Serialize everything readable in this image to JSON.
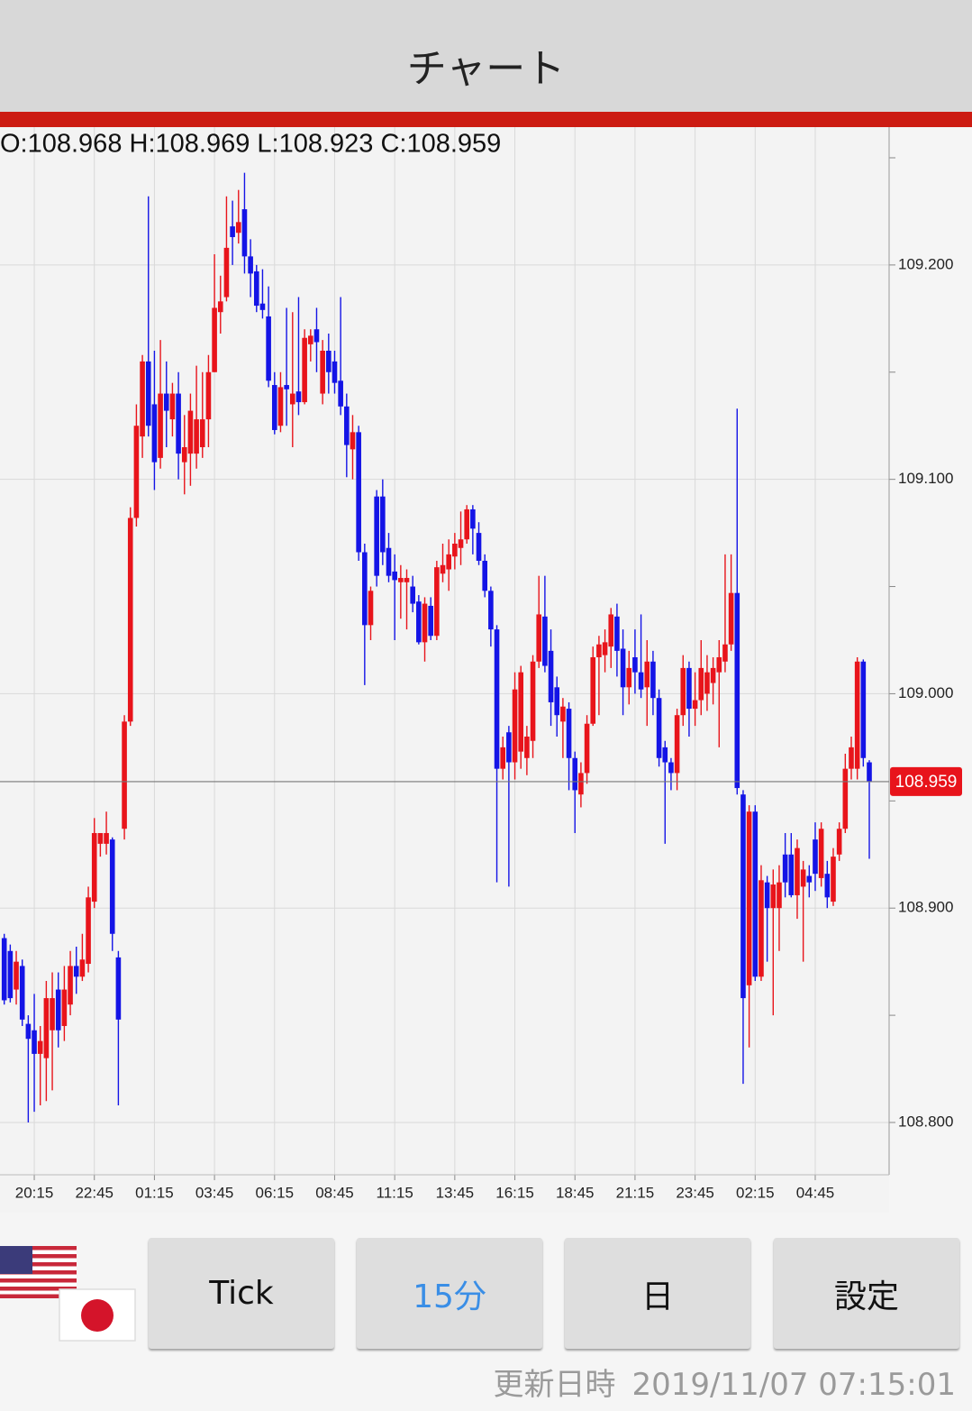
{
  "header": {
    "title": "チャート"
  },
  "chart_data": {
    "type": "candlestick",
    "ohlc_text": "O:108.968 H:108.969 L:108.923 C:108.959",
    "categories": [
      null,
      null,
      null,
      null,
      null,
      "20:15",
      null,
      null,
      null,
      null,
      null,
      null,
      null,
      null,
      null,
      "22:45",
      null,
      null,
      null,
      null,
      null,
      null,
      null,
      null,
      null,
      "01:15",
      null,
      null,
      null,
      null,
      null,
      null,
      null,
      null,
      null,
      "03:45",
      null,
      null,
      null,
      null,
      null,
      null,
      null,
      null,
      null,
      "06:15",
      null,
      null,
      null,
      null,
      null,
      null,
      null,
      null,
      null,
      "08:45",
      null,
      null,
      null,
      null,
      null,
      null,
      null,
      null,
      null,
      "11:15",
      null,
      null,
      null,
      null,
      null,
      null,
      null,
      null,
      null,
      "13:45",
      null,
      null,
      null,
      null,
      null,
      null,
      null,
      null,
      null,
      "16:15",
      null,
      null,
      null,
      null,
      null,
      null,
      null,
      null,
      null,
      "18:45",
      null,
      null,
      null,
      null,
      null,
      null,
      null,
      null,
      null,
      "21:15",
      null,
      null,
      null,
      null,
      null,
      null,
      null,
      null,
      null,
      "23:45",
      null,
      null,
      null,
      null,
      null,
      null,
      null,
      null,
      null,
      "02:15",
      null,
      null,
      null,
      null,
      null,
      null,
      null,
      null,
      null,
      "04:45",
      null,
      null,
      null,
      null,
      null,
      null,
      null,
      null,
      null
    ],
    "open": [
      108.886,
      108.88,
      108.862,
      108.873,
      108.846,
      108.843,
      108.832,
      108.83,
      108.843,
      108.862,
      108.845,
      108.855,
      108.873,
      108.868,
      108.874,
      108.903,
      108.93,
      108.93,
      108.932,
      108.877,
      108.937,
      108.987,
      109.082,
      109.12,
      109.155,
      109.135,
      109.11,
      109.14,
      109.128,
      109.14,
      109.108,
      109.112,
      109.112,
      109.115,
      109.128,
      109.15,
      109.178,
      109.185,
      109.218,
      109.215,
      109.226,
      109.204,
      109.197,
      109.182,
      109.176,
      109.144,
      109.125,
      109.144,
      109.135,
      109.141,
      109.136,
      109.163,
      109.17,
      109.14,
      109.16,
      109.155,
      109.146,
      109.134,
      109.114,
      109.122,
      109.066,
      109.032,
      109.092,
      109.092,
      109.068,
      109.057,
      109.052,
      109.052,
      109.05,
      109.043,
      109.024,
      109.041,
      109.027,
      109.056,
      109.058,
      109.064,
      109.068,
      109.072,
      109.086,
      109.075,
      109.062,
      109.048,
      109.03,
      108.965,
      108.982,
      108.968,
      108.973,
      108.97,
      108.978,
      109.015,
      109.036,
      109.02,
      109.003,
      108.987,
      108.993,
      108.97,
      108.953,
      108.963,
      108.986,
      109.017,
      109.018,
      109.022,
      109.036,
      109.021,
      109.003,
      109.017,
      109.01,
      109.003,
      109.015,
      108.998,
      108.975,
      108.968,
      108.963,
      108.99,
      109.012,
      108.993,
      108.997,
      109.0,
      109.005,
      109.01,
      109.015,
      109.023,
      109.047,
      108.953,
      108.864,
      108.945,
      108.868,
      108.912,
      108.9,
      108.9,
      108.925,
      108.925,
      108.906,
      108.91,
      108.915,
      108.932,
      108.914,
      108.916,
      108.903,
      108.925,
      108.937,
      108.965,
      108.965,
      109.015,
      108.968
    ],
    "high": [
      108.888,
      108.883,
      108.88,
      108.876,
      108.85,
      108.86,
      108.845,
      108.866,
      108.87,
      108.87,
      108.873,
      108.88,
      108.882,
      108.888,
      108.91,
      108.942,
      108.935,
      108.945,
      108.933,
      108.88,
      108.99,
      109.087,
      109.135,
      109.158,
      109.232,
      109.16,
      109.165,
      109.155,
      109.145,
      109.15,
      109.13,
      109.14,
      109.153,
      109.15,
      109.158,
      109.205,
      109.195,
      109.232,
      109.23,
      109.235,
      109.243,
      109.212,
      109.2,
      109.198,
      109.19,
      109.15,
      109.15,
      109.18,
      109.178,
      109.185,
      109.17,
      109.17,
      109.18,
      109.165,
      109.168,
      109.16,
      109.185,
      109.14,
      109.13,
      109.125,
      109.07,
      109.05,
      109.095,
      109.1,
      109.075,
      109.065,
      109.06,
      109.058,
      109.055,
      109.046,
      109.045,
      109.045,
      109.062,
      109.07,
      109.072,
      109.075,
      109.085,
      109.088,
      109.088,
      109.08,
      109.065,
      109.05,
      109.032,
      108.98,
      108.985,
      109.01,
      109.013,
      108.985,
      109.018,
      109.055,
      109.055,
      109.03,
      109.008,
      108.998,
      108.996,
      108.973,
      108.968,
      108.99,
      109.022,
      109.027,
      109.03,
      109.04,
      109.042,
      109.03,
      109.02,
      109.03,
      109.037,
      109.025,
      109.02,
      109.002,
      108.978,
      108.97,
      108.993,
      109.018,
      109.015,
      109.01,
      109.025,
      109.018,
      109.017,
      109.025,
      109.065,
      109.065,
      109.133,
      108.955,
      108.948,
      108.948,
      108.92,
      108.915,
      108.918,
      108.92,
      108.935,
      108.935,
      108.932,
      108.922,
      108.92,
      108.94,
      108.94,
      108.922,
      108.928,
      108.94,
      108.972,
      108.98,
      109.017,
      109.016,
      108.969
    ],
    "low": [
      108.855,
      108.856,
      108.855,
      108.845,
      108.8,
      108.805,
      108.808,
      108.81,
      108.815,
      108.835,
      108.838,
      108.85,
      108.86,
      108.866,
      108.87,
      108.9,
      108.924,
      108.925,
      108.88,
      108.808,
      108.932,
      108.985,
      109.078,
      109.11,
      109.12,
      109.095,
      109.105,
      109.115,
      109.12,
      109.1,
      109.093,
      109.097,
      109.105,
      109.11,
      109.115,
      109.15,
      109.168,
      109.183,
      109.2,
      109.21,
      109.196,
      109.185,
      109.178,
      109.175,
      109.143,
      109.121,
      109.122,
      109.125,
      109.115,
      109.13,
      109.135,
      109.155,
      109.15,
      109.135,
      109.14,
      109.14,
      109.13,
      109.101,
      109.1,
      109.062,
      109.004,
      109.025,
      109.05,
      109.06,
      109.052,
      109.025,
      109.035,
      109.03,
      109.038,
      109.023,
      109.015,
      109.025,
      109.025,
      109.052,
      109.048,
      109.058,
      109.06,
      109.07,
      109.065,
      109.06,
      109.045,
      109.022,
      108.912,
      108.96,
      108.91,
      108.96,
      108.965,
      108.962,
      108.97,
      109.012,
      109.01,
      108.985,
      108.98,
      108.97,
      108.955,
      108.935,
      108.947,
      108.958,
      108.985,
      108.99,
      109.01,
      109.012,
      109.008,
      108.99,
      108.995,
      109.0,
      108.998,
      108.985,
      108.99,
      108.966,
      108.93,
      108.955,
      108.955,
      108.985,
      108.98,
      108.985,
      108.99,
      108.992,
      108.995,
      108.975,
      109.01,
      109.02,
      108.953,
      108.818,
      108.835,
      108.866,
      108.866,
      108.875,
      108.85,
      108.88,
      108.905,
      108.905,
      108.895,
      108.875,
      108.905,
      108.908,
      108.91,
      108.9,
      108.901,
      108.922,
      108.935,
      108.96,
      108.96,
      108.966,
      108.923
    ],
    "close": [
      108.857,
      108.858,
      108.875,
      108.848,
      108.839,
      108.832,
      108.838,
      108.858,
      108.858,
      108.843,
      108.862,
      108.873,
      108.868,
      108.876,
      108.905,
      108.935,
      108.935,
      108.935,
      108.888,
      108.848,
      108.987,
      109.082,
      109.125,
      109.155,
      109.125,
      109.108,
      109.14,
      109.132,
      109.14,
      109.112,
      109.115,
      109.132,
      109.128,
      109.128,
      109.15,
      109.18,
      109.183,
      109.208,
      109.213,
      109.22,
      109.204,
      109.196,
      109.181,
      109.179,
      109.146,
      109.123,
      109.143,
      109.142,
      109.14,
      109.136,
      109.166,
      109.167,
      109.164,
      109.16,
      109.15,
      109.145,
      109.134,
      109.116,
      109.122,
      109.066,
      109.032,
      109.048,
      109.055,
      109.066,
      109.055,
      109.053,
      109.054,
      109.054,
      109.042,
      109.024,
      109.042,
      109.027,
      109.059,
      109.06,
      109.065,
      109.07,
      109.072,
      109.086,
      109.077,
      109.062,
      109.048,
      109.03,
      108.965,
      108.975,
      108.968,
      109.002,
      109.01,
      108.98,
      109.015,
      109.037,
      109.013,
      108.996,
      108.99,
      108.994,
      108.97,
      108.955,
      108.963,
      108.986,
      109.017,
      109.023,
      109.024,
      109.037,
      109.02,
      109.003,
      109.012,
      109.01,
      109.002,
      109.015,
      108.998,
      108.97,
      108.968,
      108.963,
      108.99,
      109.012,
      108.993,
      108.997,
      109.012,
      109.01,
      109.012,
      109.017,
      109.023,
      109.047,
      108.956,
      108.858,
      108.945,
      108.868,
      108.913,
      108.9,
      108.911,
      108.912,
      108.912,
      108.906,
      108.928,
      108.918,
      108.912,
      108.916,
      108.937,
      108.905,
      108.924,
      108.937,
      108.965,
      108.975,
      109.015,
      108.97,
      108.959
    ],
    "up_color": "#e8141b",
    "down_color": "#1414e6",
    "last_price": 108.959,
    "last_price_color": "#e8141b",
    "ylim": [
      108.7756,
      109.2643
    ],
    "yticks": [
      {
        "value": 108.8,
        "label": "108.800"
      },
      {
        "value": 108.9,
        "label": "108.900"
      },
      {
        "value": 109.0,
        "label": "109.000"
      },
      {
        "value": 109.1,
        "label": "109.100"
      },
      {
        "value": 109.2,
        "label": "109.200"
      }
    ],
    "minor_yticks": [
      108.85,
      108.95,
      109.05,
      109.15,
      109.25
    ],
    "grid": true
  },
  "buttons": [
    {
      "label": "Tick"
    },
    {
      "label": "15分",
      "selected": true
    },
    {
      "label": "日"
    },
    {
      "label": "設定"
    }
  ],
  "footer": {
    "label": "更新日時",
    "timestamp": "2019/11/07 07:15:01"
  }
}
